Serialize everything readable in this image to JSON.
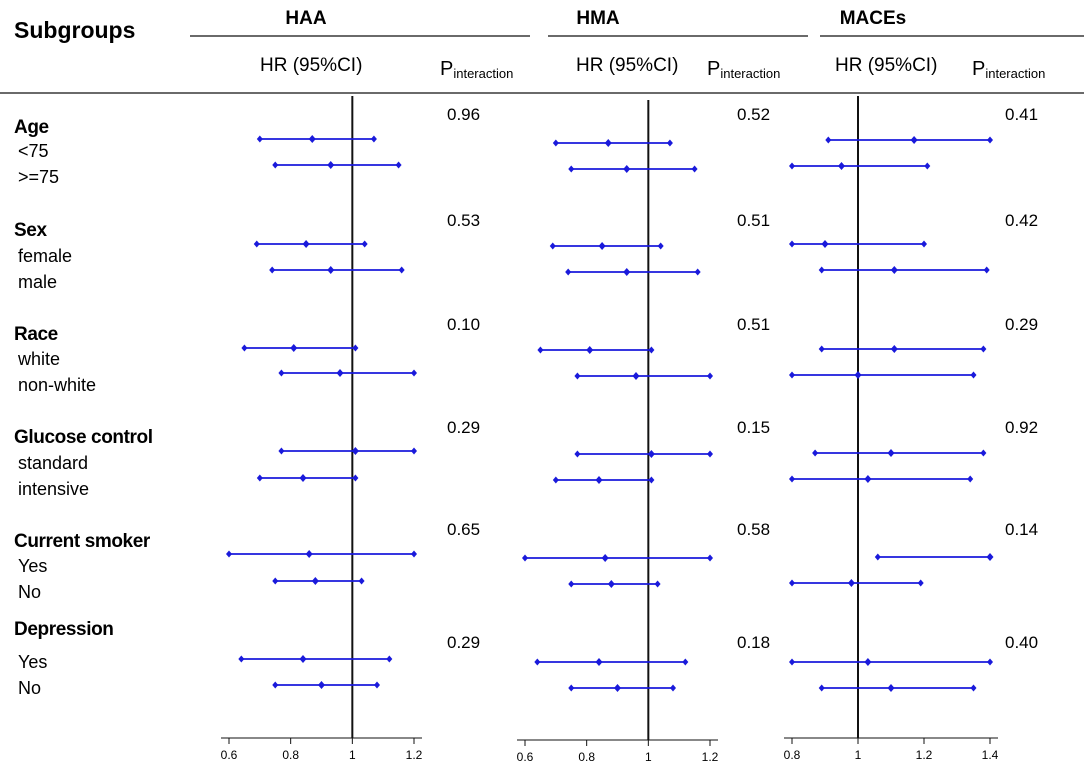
{
  "header": {
    "subgroups_label": "Subgroups",
    "hr_label": "HR (95%CI)",
    "p_label_main": "P",
    "p_label_sub": "interaction"
  },
  "colors": {
    "accent": "#1a1adb",
    "line": "#111111"
  },
  "chart_data": {
    "type": "forest",
    "subgroups": [
      {
        "name": "Age",
        "levels": [
          "<75",
          ">=75"
        ]
      },
      {
        "name": "Sex",
        "levels": [
          "female",
          "male"
        ]
      },
      {
        "name": "Race",
        "levels": [
          "white",
          "non-white"
        ]
      },
      {
        "name": "Glucose control",
        "levels": [
          "standard",
          "intensive"
        ]
      },
      {
        "name": "Current smoker",
        "levels": [
          "Yes",
          "No"
        ]
      },
      {
        "name": "Depression",
        "levels": [
          "Yes",
          "No"
        ]
      }
    ],
    "panels": [
      {
        "title": "HAA",
        "xlim": [
          0.6,
          1.2
        ],
        "ticks": [
          0.6,
          0.8,
          1,
          1.2
        ],
        "tick_labels": [
          "0.6",
          "0.8",
          "1",
          "1.2"
        ],
        "reference": 1,
        "p_interaction": [
          "0.96",
          "0.53",
          "0.10",
          "0.29",
          "0.65",
          "0.29"
        ],
        "estimates": [
          [
            {
              "hr": 0.87,
              "lo": 0.7,
              "hi": 1.07
            },
            {
              "hr": 0.93,
              "lo": 0.75,
              "hi": 1.15
            }
          ],
          [
            {
              "hr": 0.85,
              "lo": 0.69,
              "hi": 1.04
            },
            {
              "hr": 0.93,
              "lo": 0.74,
              "hi": 1.16
            }
          ],
          [
            {
              "hr": 0.81,
              "lo": 0.65,
              "hi": 1.01
            },
            {
              "hr": 0.96,
              "lo": 0.77,
              "hi": 1.2
            }
          ],
          [
            {
              "hr": 1.01,
              "lo": 0.77,
              "hi": 1.2
            },
            {
              "hr": 0.84,
              "lo": 0.7,
              "hi": 1.01
            }
          ],
          [
            {
              "hr": 0.86,
              "lo": 0.6,
              "hi": 1.2
            },
            {
              "hr": 0.88,
              "lo": 0.75,
              "hi": 1.03
            }
          ],
          [
            {
              "hr": 0.84,
              "lo": 0.64,
              "hi": 1.12
            },
            {
              "hr": 0.9,
              "lo": 0.75,
              "hi": 1.08
            }
          ]
        ]
      },
      {
        "title": "HMA",
        "xlim": [
          0.6,
          1.2
        ],
        "ticks": [
          0.6,
          0.8,
          1,
          1.2
        ],
        "tick_labels": [
          "0.6",
          "0.8",
          "1",
          "1.2"
        ],
        "reference": 1,
        "p_interaction": [
          "0.52",
          "0.51",
          "0.51",
          "0.15",
          "0.58",
          "0.18"
        ],
        "estimates": [
          [
            {
              "hr": 0.87,
              "lo": 0.7,
              "hi": 1.07
            },
            {
              "hr": 0.93,
              "lo": 0.75,
              "hi": 1.15
            }
          ],
          [
            {
              "hr": 0.85,
              "lo": 0.69,
              "hi": 1.04
            },
            {
              "hr": 0.93,
              "lo": 0.74,
              "hi": 1.16
            }
          ],
          [
            {
              "hr": 0.81,
              "lo": 0.65,
              "hi": 1.01
            },
            {
              "hr": 0.96,
              "lo": 0.77,
              "hi": 1.2
            }
          ],
          [
            {
              "hr": 1.01,
              "lo": 0.77,
              "hi": 1.2
            },
            {
              "hr": 0.84,
              "lo": 0.7,
              "hi": 1.01
            }
          ],
          [
            {
              "hr": 0.86,
              "lo": 0.6,
              "hi": 1.2
            },
            {
              "hr": 0.88,
              "lo": 0.75,
              "hi": 1.03
            }
          ],
          [
            {
              "hr": 0.84,
              "lo": 0.64,
              "hi": 1.12
            },
            {
              "hr": 0.9,
              "lo": 0.75,
              "hi": 1.08
            }
          ]
        ]
      },
      {
        "title": "MACEs",
        "xlim": [
          0.8,
          1.4
        ],
        "ticks": [
          0.8,
          1,
          1.2,
          1.4
        ],
        "tick_labels": [
          "0.8",
          "1",
          "1.2",
          "1.4"
        ],
        "reference": 1,
        "p_interaction": [
          "0.41",
          "0.42",
          "0.29",
          "0.92",
          "0.14",
          "0.40"
        ],
        "estimates": [
          [
            {
              "hr": 1.17,
              "lo": 0.91,
              "hi": 1.4
            },
            {
              "hr": 0.95,
              "lo": 0.8,
              "hi": 1.21
            }
          ],
          [
            {
              "hr": 0.9,
              "lo": 0.8,
              "hi": 1.2
            },
            {
              "hr": 1.11,
              "lo": 0.89,
              "hi": 1.39
            }
          ],
          [
            {
              "hr": 1.11,
              "lo": 0.89,
              "hi": 1.38
            },
            {
              "hr": 1.0,
              "lo": 0.8,
              "hi": 1.35
            }
          ],
          [
            {
              "hr": 1.1,
              "lo": 0.87,
              "hi": 1.38
            },
            {
              "hr": 1.03,
              "lo": 0.8,
              "hi": 1.34
            }
          ],
          [
            {
              "hr": 1.4,
              "lo": 1.06,
              "hi": 1.4
            },
            {
              "hr": 0.98,
              "lo": 0.8,
              "hi": 1.19
            }
          ],
          [
            {
              "hr": 1.03,
              "lo": 0.8,
              "hi": 1.4
            },
            {
              "hr": 1.1,
              "lo": 0.89,
              "hi": 1.35
            }
          ]
        ]
      }
    ]
  }
}
